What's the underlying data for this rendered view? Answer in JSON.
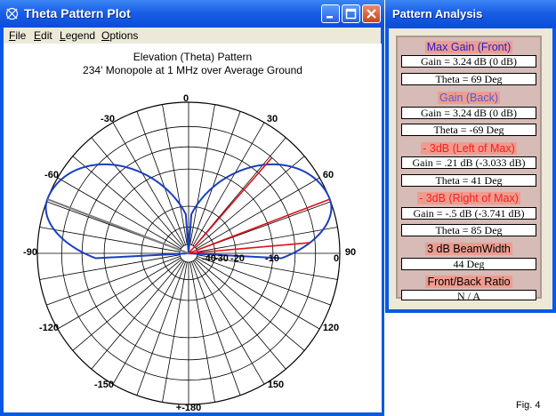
{
  "window_main": {
    "title": "Theta Pattern Plot",
    "menu": [
      {
        "u": "F",
        "rest": "ile"
      },
      {
        "u": "E",
        "rest": "dit"
      },
      {
        "u": "L",
        "rest": "egend"
      },
      {
        "u": "O",
        "rest": "ptions"
      }
    ]
  },
  "plot": {
    "title_line1": "Elevation (Theta) Pattern",
    "title_line2": "234' Monopole at 1 MHz over Average Ground",
    "angle_labels": {
      "a0": "0",
      "a30": "30",
      "a60": "60",
      "a90": "90",
      "a120": "120",
      "a150": "150",
      "a180": "+-180",
      "am150": "-150",
      "am120": "-120",
      "am90": "-90",
      "am60": "-60",
      "am30": "-30"
    },
    "radial_labels": [
      "-40",
      "-30",
      "-20",
      "-10",
      "0"
    ],
    "colors": {
      "trace": "#1a3fbf",
      "max_marker": "#e0101a",
      "back_marker": "#808080",
      "grid": "#000000"
    }
  },
  "analysis": {
    "title": "Pattern Analysis",
    "sections": [
      {
        "label": "Max Gain (Front)",
        "values": [
          "Gain = 3.24 dB  (0 dB)",
          "Theta = 69 Deg"
        ]
      },
      {
        "label": "Gain (Back)",
        "values": [
          "Gain = 3.24 dB  (0 dB)",
          "Theta = -69 Deg"
        ]
      },
      {
        "label": "- 3dB (Left of Max)",
        "values": [
          "Gain = .21 dB  (-3.033 dB)",
          "Theta = 41 Deg"
        ]
      },
      {
        "label": "- 3dB (Right of Max)",
        "values": [
          "Gain = -.5 dB  (-3.741 dB)",
          "Theta = 85 Deg"
        ]
      },
      {
        "label": "3 dB BeamWidth",
        "values": [
          "44 Deg"
        ]
      },
      {
        "label": "Front/Back Ratio",
        "values": [
          "N / A"
        ]
      }
    ]
  },
  "figure_label": "Fig. 4"
}
